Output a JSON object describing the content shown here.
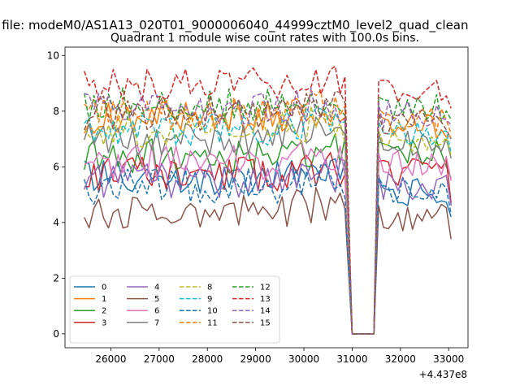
{
  "figure": {
    "suptitle": "n file: modeM0/AS1A13_020T01_9000006040_44999cztM0_level2_quad_clean",
    "title": "Quadrant 1 module wise count rates with 100.0s bins.",
    "x_offset_label": "+4.437e8"
  },
  "chart_data": {
    "type": "line",
    "title": "Quadrant 1 module wise count rates with 100.0s bins.",
    "xlabel": "",
    "ylabel": "",
    "x_offset": 443700000,
    "xlim": [
      25050,
      33400
    ],
    "ylim": [
      -0.5,
      10.3
    ],
    "xticks": [
      26000,
      27000,
      28000,
      29000,
      30000,
      31000,
      32000,
      33000
    ],
    "xtick_labels": [
      "26000",
      "27000",
      "28000",
      "29000",
      "30000",
      "31000",
      "32000",
      "33000"
    ],
    "yticks": [
      0,
      2,
      4,
      6,
      8,
      10
    ],
    "ytick_labels": [
      "0",
      "2",
      "4",
      "6",
      "8",
      "10"
    ],
    "grid": false,
    "legend_placement": "lower-left",
    "legend_columns": 4,
    "bin_width_s": 100,
    "series": [
      {
        "name": "0",
        "color": "#1f77b4",
        "style": "solid",
        "base": 5.6,
        "late": 5.1,
        "end": 4.2,
        "seed": 1
      },
      {
        "name": "1",
        "color": "#ff7f0e",
        "style": "solid",
        "base": 7.8,
        "late": 7.5,
        "end": 7.1,
        "seed": 2
      },
      {
        "name": "2",
        "color": "#2ca02c",
        "style": "solid",
        "base": 6.4,
        "late": 6.5,
        "end": 5.6,
        "seed": 3
      },
      {
        "name": "3",
        "color": "#d62728",
        "style": "solid",
        "base": 5.7,
        "late": 5.8,
        "end": 4.7,
        "seed": 4
      },
      {
        "name": "4",
        "color": "#9467bd",
        "style": "solid",
        "base": 5.5,
        "late": 5.3,
        "end": 4.6,
        "seed": 5
      },
      {
        "name": "5",
        "color": "#8c564b",
        "style": "solid",
        "base": 4.4,
        "late": 4.2,
        "end": 3.4,
        "seed": 6
      },
      {
        "name": "6",
        "color": "#e377c2",
        "style": "solid",
        "base": 6.2,
        "late": 6.1,
        "end": 5.5,
        "seed": 7
      },
      {
        "name": "7",
        "color": "#7f7f7f",
        "style": "solid",
        "base": 7.0,
        "late": 6.8,
        "end": 6.3,
        "seed": 8
      },
      {
        "name": "8",
        "color": "#bcbd22",
        "style": "dashed",
        "base": 7.3,
        "late": 6.9,
        "end": 6.4,
        "seed": 9
      },
      {
        "name": "9",
        "color": "#17becf",
        "style": "dashed",
        "base": 7.4,
        "late": 7.2,
        "end": 6.5,
        "seed": 10
      },
      {
        "name": "10",
        "color": "#1f77b4",
        "style": "dashed",
        "base": 5.3,
        "late": 5.2,
        "end": 4.3,
        "seed": 11
      },
      {
        "name": "11",
        "color": "#ff7f0e",
        "style": "dashed",
        "base": 7.9,
        "late": 7.7,
        "end": 7.2,
        "seed": 12
      },
      {
        "name": "12",
        "color": "#2ca02c",
        "style": "dashed",
        "base": 8.2,
        "late": 8.1,
        "end": 7.7,
        "seed": 13
      },
      {
        "name": "13",
        "color": "#d62728",
        "style": "dashed",
        "base": 8.9,
        "late": 8.7,
        "end": 8.1,
        "seed": 14
      },
      {
        "name": "14",
        "color": "#9467bd",
        "style": "dashed",
        "base": 8.0,
        "late": 7.9,
        "end": 7.5,
        "seed": 15
      },
      {
        "name": "15",
        "color": "#8c564b",
        "style": "dashed",
        "base": 7.9,
        "late": 7.6,
        "end": 7.0,
        "seed": 16
      }
    ],
    "segments": [
      {
        "x_start": 25450,
        "x_end": 30850,
        "value_key": "base"
      },
      {
        "x_start": 31550,
        "x_end": 33050,
        "value_key": "late"
      }
    ],
    "gap": {
      "x_start": 31000,
      "x_end": 31450,
      "value": 0
    }
  }
}
